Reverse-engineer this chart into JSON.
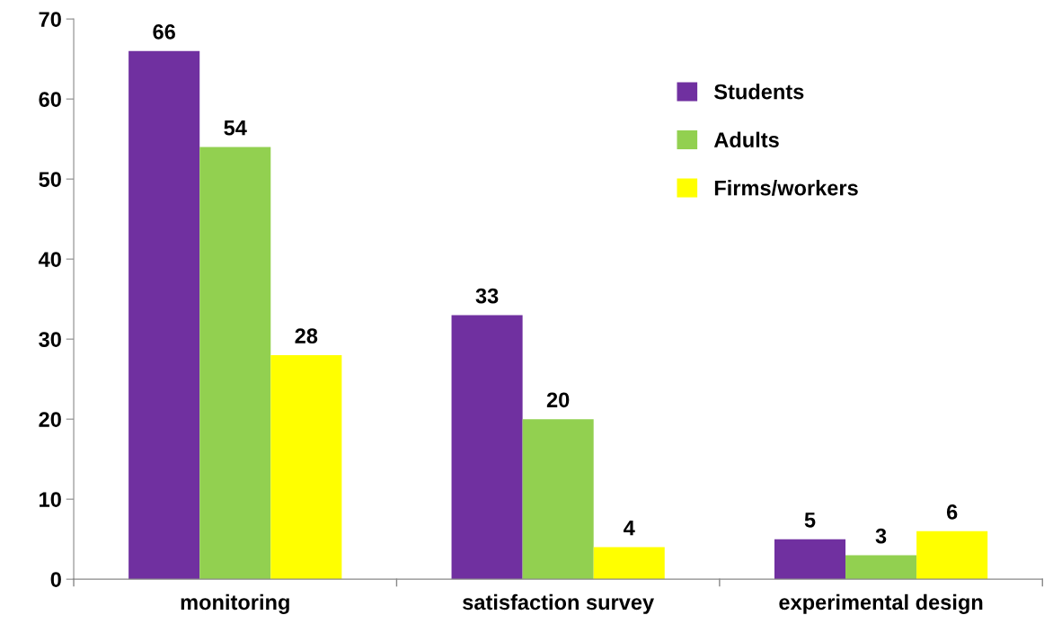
{
  "chart_data": {
    "type": "bar",
    "categories": [
      "monitoring",
      "satisfaction survey",
      "experimental design"
    ],
    "series": [
      {
        "name": "Students",
        "color": "#7030a0",
        "values": [
          66,
          33,
          5
        ]
      },
      {
        "name": "Adults",
        "color": "#92d050",
        "values": [
          54,
          20,
          3
        ]
      },
      {
        "name": "Firms/workers",
        "color": "#ffff00",
        "values": [
          28,
          4,
          6
        ]
      }
    ],
    "ylim": [
      0,
      70
    ],
    "yticks": [
      0,
      10,
      20,
      30,
      40,
      50,
      60,
      70
    ],
    "data_labels": true,
    "legend": "top right",
    "grid": false
  }
}
